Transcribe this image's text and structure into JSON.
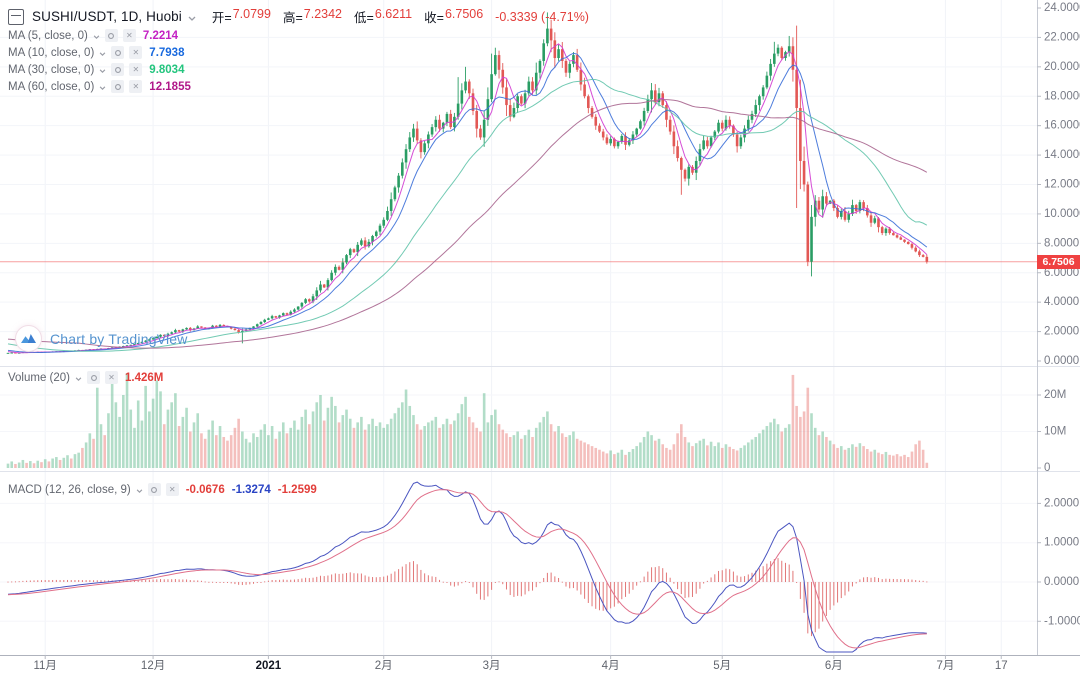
{
  "header": {
    "symbol_title": "SUSHI/USDT, 1D, Huobi",
    "ohlc": {
      "open_label": "开=",
      "open": "7.0799",
      "high_label": "高=",
      "high": "7.2342",
      "low_label": "低=",
      "low": "6.6211",
      "close_label": "收=",
      "close": "6.7506",
      "change": "-0.3339 (-4.71%)",
      "value_color": "#e23e3a"
    },
    "ma_rows": [
      {
        "label": "MA (5, close, 0)",
        "value": "7.2214",
        "value_color": "#c421c4",
        "line_color": "#d23bd2"
      },
      {
        "label": "MA (10, close, 0)",
        "value": "7.7938",
        "value_color": "#1869de",
        "line_color": "#3b6fd8"
      },
      {
        "label": "MA (30, close, 0)",
        "value": "9.8034",
        "value_color": "#23c57e",
        "line_color": "#63c4ab"
      },
      {
        "label": "MA (60, close, 0)",
        "value": "12.1855",
        "value_color": "#b01889",
        "line_color": "#a8668f"
      }
    ]
  },
  "volume_legend": {
    "label": "Volume (20)",
    "value": "1.426M",
    "value_color": "#e23e3a"
  },
  "macd_legend": {
    "label": "MACD (12, 26, close, 9)",
    "hist_value": "-0.0676",
    "hist_color": "#e23e3a",
    "macd_value": "-1.3274",
    "macd_color": "#2a44c4",
    "signal_value": "-1.2599",
    "signal_color": "#e23e3a"
  },
  "watermark": {
    "text": "Chart by TradingView"
  },
  "axes": {
    "price_label": {
      "text": "6.7506",
      "value": 6.7506
    },
    "price_ticks": [
      {
        "label": "24.0000",
        "value": 24
      },
      {
        "label": "22.0000",
        "value": 22
      },
      {
        "label": "20.0000",
        "value": 20
      },
      {
        "label": "18.0000",
        "value": 18
      },
      {
        "label": "16.0000",
        "value": 16
      },
      {
        "label": "14.0000",
        "value": 14
      },
      {
        "label": "12.0000",
        "value": 12
      },
      {
        "label": "10.0000",
        "value": 10
      },
      {
        "label": "8.0000",
        "value": 8
      },
      {
        "label": "6.0000",
        "value": 6
      },
      {
        "label": "4.0000",
        "value": 4
      },
      {
        "label": "2.0000",
        "value": 2
      },
      {
        "label": "0.0000",
        "value": 0
      }
    ],
    "volume_ticks": [
      {
        "label": "20M",
        "value": 20
      },
      {
        "label": "10M",
        "value": 10
      },
      {
        "label": "0",
        "value": 0
      }
    ],
    "macd_ticks": [
      {
        "label": "2.0000",
        "value": 2
      },
      {
        "label": "1.0000",
        "value": 1
      },
      {
        "label": "0.0000",
        "value": 0
      },
      {
        "label": "-1.0000",
        "value": -1
      }
    ],
    "time_ticks": [
      {
        "label": "11月",
        "i": 10
      },
      {
        "label": "12月",
        "i": 39
      },
      {
        "label": "2021",
        "i": 70,
        "strong": true
      },
      {
        "label": "2月",
        "i": 101
      },
      {
        "label": "3月",
        "i": 130
      },
      {
        "label": "4月",
        "i": 162
      },
      {
        "label": "5月",
        "i": 192
      },
      {
        "label": "6月",
        "i": 222
      },
      {
        "label": "7月",
        "i": 252
      },
      {
        "label": "17",
        "i": 267
      }
    ]
  },
  "chart_data": {
    "type": "candlestick",
    "symbol": "SUSHI/USDT",
    "interval": "1D",
    "exchange": "Huobi",
    "last_candle": {
      "open": 7.0799,
      "high": 7.2342,
      "low": 6.6211,
      "close": 6.7506,
      "change": -0.3339,
      "change_pct": -4.71,
      "volume": "1.426M"
    },
    "indicators": {
      "ma_periods": [
        5,
        10,
        30,
        60
      ],
      "macd_params": [
        12,
        26,
        9
      ],
      "volume_ma": 20
    },
    "price_axis": {
      "min": 0,
      "max": 24,
      "step": 2
    },
    "volume_axis_m": {
      "min": 0,
      "max": 27
    },
    "macd_axis": {
      "min": -1.8,
      "max": 2.7
    },
    "first_open": 0.53,
    "warmup_closes": [
      2.8,
      2.7,
      2.6,
      2.55,
      2.45,
      2.4,
      2.3,
      2.2,
      2.15,
      2.05,
      2.0,
      1.9,
      1.85,
      1.8,
      1.7,
      1.65,
      1.6,
      1.55,
      1.5,
      1.45,
      1.4,
      1.35,
      1.3,
      1.25,
      1.2,
      1.15,
      1.1,
      1.05,
      1.0,
      0.95,
      0.92,
      0.88,
      0.85,
      0.8,
      0.78,
      0.75,
      0.72,
      0.68,
      0.65,
      0.6
    ],
    "closes": [
      0.55,
      0.57,
      0.54,
      0.56,
      0.6,
      0.58,
      0.61,
      0.59,
      0.62,
      0.6,
      0.63,
      0.61,
      0.64,
      0.66,
      0.63,
      0.67,
      0.7,
      0.68,
      0.72,
      0.75,
      0.73,
      0.77,
      0.8,
      0.78,
      0.82,
      0.85,
      0.83,
      0.88,
      0.92,
      0.95,
      0.98,
      1.02,
      1.06,
      1.1,
      1.15,
      1.22,
      1.3,
      1.38,
      1.47,
      1.55,
      1.65,
      1.78,
      1.7,
      1.85,
      1.95,
      2.1,
      2.0,
      2.15,
      2.25,
      2.1,
      2.2,
      2.35,
      2.28,
      2.18,
      2.25,
      2.4,
      2.32,
      2.45,
      2.38,
      2.3,
      2.2,
      2.1,
      1.95,
      2.05,
      2.15,
      2.25,
      2.35,
      2.5,
      2.65,
      2.8,
      2.9,
      3.05,
      2.95,
      3.1,
      3.25,
      3.15,
      3.35,
      3.5,
      3.7,
      3.95,
      4.2,
      4.05,
      4.4,
      4.8,
      5.2,
      5.0,
      5.5,
      6.0,
      6.4,
      6.2,
      6.7,
      7.2,
      7.6,
      7.4,
      7.9,
      8.2,
      7.8,
      8.1,
      8.5,
      8.8,
      9.2,
      9.6,
      10.2,
      11.0,
      11.8,
      12.6,
      13.5,
      14.4,
      15.2,
      15.8,
      15.0,
      14.2,
      14.8,
      15.4,
      15.9,
      16.4,
      15.8,
      16.2,
      16.8,
      15.9,
      16.6,
      17.5,
      18.4,
      19.0,
      18.2,
      17.0,
      15.8,
      15.2,
      16.4,
      17.8,
      19.5,
      20.8,
      19.8,
      18.6,
      17.4,
      16.6,
      17.2,
      18.0,
      17.5,
      18.2,
      19.0,
      18.4,
      19.6,
      20.4,
      21.6,
      22.6,
      21.8,
      20.6,
      21.2,
      20.4,
      19.6,
      20.2,
      20.8,
      19.8,
      18.8,
      18.0,
      17.2,
      16.6,
      16.0,
      15.6,
      15.2,
      14.8,
      15.1,
      14.6,
      14.9,
      15.3,
      14.7,
      15.0,
      15.4,
      15.8,
      16.3,
      17.0,
      17.8,
      18.4,
      17.6,
      18.2,
      17.4,
      16.4,
      15.6,
      14.6,
      13.8,
      13.0,
      12.4,
      13.2,
      12.8,
      13.6,
      14.4,
      15.0,
      14.6,
      15.2,
      15.6,
      16.2,
      15.8,
      16.4,
      16.0,
      15.4,
      14.6,
      15.2,
      15.8,
      16.4,
      16.8,
      17.4,
      18.0,
      18.6,
      19.4,
      20.2,
      20.9,
      21.3,
      20.6,
      21.0,
      21.4,
      19.8,
      17.2,
      13.6,
      12.0,
      6.75,
      9.8,
      10.9,
      10.3,
      11.2,
      10.7,
      10.9,
      10.4,
      9.8,
      10.2,
      9.6,
      10.0,
      10.6,
      10.2,
      10.8,
      10.4,
      9.9,
      9.4,
      9.7,
      9.1,
      8.7,
      9.0,
      8.7,
      8.55,
      8.4,
      8.25,
      8.1,
      7.95,
      7.7,
      7.45,
      7.2,
      7.08,
      6.7506
    ],
    "volumes_m": [
      1.2,
      1.8,
      1.1,
      1.5,
      2.2,
      1.4,
      1.9,
      1.3,
      2.0,
      1.6,
      2.4,
      1.8,
      2.6,
      3.0,
      2.2,
      2.8,
      3.5,
      2.6,
      3.8,
      4.2,
      5.5,
      7.0,
      9.5,
      8.0,
      22.0,
      12.0,
      9.0,
      15.0,
      25.5,
      18.0,
      14.0,
      20.0,
      26.0,
      16.0,
      11.0,
      18.5,
      13.0,
      22.5,
      15.5,
      19.0,
      24.0,
      21.0,
      12.0,
      16.0,
      18.0,
      20.5,
      11.5,
      14.0,
      16.5,
      10.0,
      12.5,
      15.0,
      9.5,
      8.0,
      10.5,
      13.0,
      9.0,
      11.5,
      8.5,
      7.5,
      9.0,
      11.0,
      13.5,
      10.0,
      8.0,
      7.0,
      9.5,
      8.5,
      10.5,
      12.0,
      9.0,
      11.5,
      8.0,
      10.0,
      12.5,
      9.5,
      11.0,
      13.0,
      10.5,
      14.0,
      16.0,
      12.0,
      15.5,
      18.0,
      20.0,
      13.0,
      16.5,
      19.5,
      17.0,
      12.5,
      14.5,
      16.0,
      13.5,
      11.0,
      12.5,
      14.0,
      10.5,
      12.0,
      13.5,
      11.5,
      12.5,
      11.0,
      12.0,
      13.5,
      15.0,
      16.5,
      18.0,
      21.5,
      17.0,
      14.5,
      12.0,
      10.5,
      11.5,
      12.5,
      13.0,
      14.0,
      11.0,
      12.0,
      13.5,
      12.0,
      13.0,
      15.0,
      17.5,
      19.5,
      14.0,
      12.5,
      11.0,
      10.0,
      20.5,
      12.5,
      14.5,
      16.0,
      12.0,
      10.5,
      9.5,
      8.5,
      9.0,
      10.0,
      8.0,
      9.0,
      10.5,
      8.5,
      11.0,
      12.5,
      14.0,
      15.5,
      12.0,
      10.0,
      11.5,
      9.5,
      8.5,
      9.0,
      10.0,
      8.0,
      7.5,
      7.0,
      6.5,
      6.0,
      5.5,
      5.0,
      4.5,
      4.0,
      4.8,
      3.8,
      4.2,
      5.0,
      3.6,
      4.4,
      5.2,
      6.0,
      7.0,
      8.5,
      10.0,
      9.0,
      7.5,
      8.0,
      6.5,
      5.5,
      5.0,
      6.5,
      9.5,
      12.0,
      8.5,
      7.0,
      6.0,
      6.8,
      7.5,
      8.0,
      6.2,
      7.2,
      6.0,
      7.0,
      5.5,
      6.5,
      5.8,
      5.2,
      4.8,
      5.5,
      6.2,
      7.0,
      7.8,
      8.5,
      9.5,
      10.5,
      11.5,
      12.5,
      13.5,
      12.0,
      10.0,
      11.0,
      12.0,
      25.5,
      17.0,
      14.0,
      15.5,
      22.0,
      15.0,
      11.0,
      9.0,
      10.0,
      8.5,
      7.5,
      6.5,
      5.5,
      6.0,
      5.0,
      5.5,
      6.5,
      5.8,
      6.8,
      6.0,
      5.2,
      4.5,
      5.0,
      4.2,
      3.8,
      4.4,
      3.6,
      3.4,
      3.8,
      3.2,
      3.6,
      3.0,
      4.5,
      6.5,
      7.5,
      5.0,
      1.43
    ],
    "wick_overrides": {
      "63": [
        2.2,
        1.2
      ],
      "121": [
        19.3,
        16.4
      ],
      "123": [
        20.0,
        18.2
      ],
      "130": [
        20.9,
        17.6
      ],
      "131": [
        21.3,
        19.4
      ],
      "145": [
        23.7,
        21.4
      ],
      "146": [
        23.2,
        21.0
      ],
      "173": [
        18.9,
        16.9
      ],
      "181": [
        13.9,
        11.3
      ],
      "206": [
        21.7,
        20.0
      ],
      "210": [
        22.1,
        20.7
      ],
      "212": [
        22.8,
        10.4
      ],
      "215": [
        12.2,
        6.45
      ],
      "247": [
        7.2342,
        6.6211
      ]
    }
  },
  "colors": {
    "up": "#2a9d64",
    "down": "#e25855",
    "vol_up": "rgba(72,173,123,0.42)",
    "vol_down": "rgba(231,112,108,0.45)",
    "macd_line": "#4a55c0",
    "signal_line": "#e0708a",
    "hist": "#dd5f5f",
    "price_line": "rgba(240,80,80,0.55)",
    "price_tag_bg": "#ef4141",
    "axis_text": "#787b86",
    "grid": "#f1f3f8",
    "separator": "#e0e3eb",
    "axis_line": "#c6cad3"
  }
}
